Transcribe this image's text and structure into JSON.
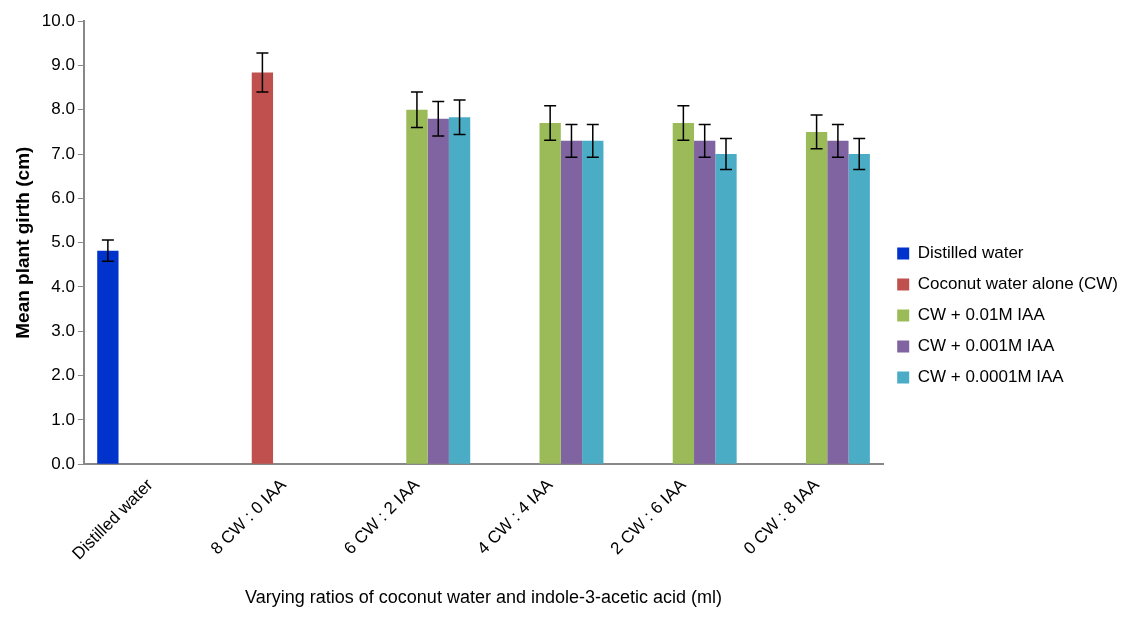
{
  "chart_data": {
    "type": "bar",
    "xlabel": "Varying ratios of coconut water and indole-3-acetic acid (ml)",
    "ylabel": "Mean plant girth (cm)",
    "categories": [
      "Distilled water",
      "8 CW : 0 IAA",
      "6 CW : 2 IAA",
      "4 CW : 4 IAA",
      "2 CW : 6 IAA",
      "0 CW : 8 IAA"
    ],
    "ylim": [
      0,
      10
    ],
    "yticks": [
      {
        "value": 0,
        "label": "0.0"
      },
      {
        "value": 1,
        "label": "1.0"
      },
      {
        "value": 2,
        "label": "2.0"
      },
      {
        "value": 3,
        "label": "3.0"
      },
      {
        "value": 4,
        "label": "4.0"
      },
      {
        "value": 5,
        "label": "5.0"
      },
      {
        "value": 6,
        "label": "6.0"
      },
      {
        "value": 7,
        "label": "7.0"
      },
      {
        "value": 8,
        "label": "8.0"
      },
      {
        "value": 9,
        "label": "9.0"
      },
      {
        "value": 10,
        "label": "10.0"
      }
    ],
    "grid": false,
    "legend": "right",
    "series": [
      {
        "name": "Distilled water",
        "color": "#0033cc",
        "values": [
          4.82,
          null,
          null,
          null,
          null,
          null
        ],
        "errors": [
          0.24,
          null,
          null,
          null,
          null,
          null
        ]
      },
      {
        "name": "Coconut water alone (CW)",
        "color": "#c0504d",
        "values": [
          null,
          8.84,
          null,
          null,
          null,
          null
        ],
        "errors": [
          null,
          0.44,
          null,
          null,
          null,
          null
        ]
      },
      {
        "name": "CW + 0.01M IAA",
        "color": "#9bbb59",
        "values": [
          null,
          null,
          8.0,
          7.7,
          7.7,
          7.5
        ],
        "errors": [
          null,
          null,
          0.4,
          0.39,
          0.39,
          0.38
        ]
      },
      {
        "name": "CW + 0.001M IAA",
        "color": "#8064a2",
        "values": [
          null,
          null,
          7.8,
          7.3,
          7.3,
          7.3
        ],
        "errors": [
          null,
          null,
          0.39,
          0.37,
          0.37,
          0.37
        ]
      },
      {
        "name": "CW + 0.0001M IAA",
        "color": "#4bacc6",
        "values": [
          null,
          null,
          7.83,
          7.3,
          7.0,
          7.0
        ],
        "errors": [
          null,
          null,
          0.39,
          0.37,
          0.35,
          0.35
        ]
      }
    ]
  }
}
